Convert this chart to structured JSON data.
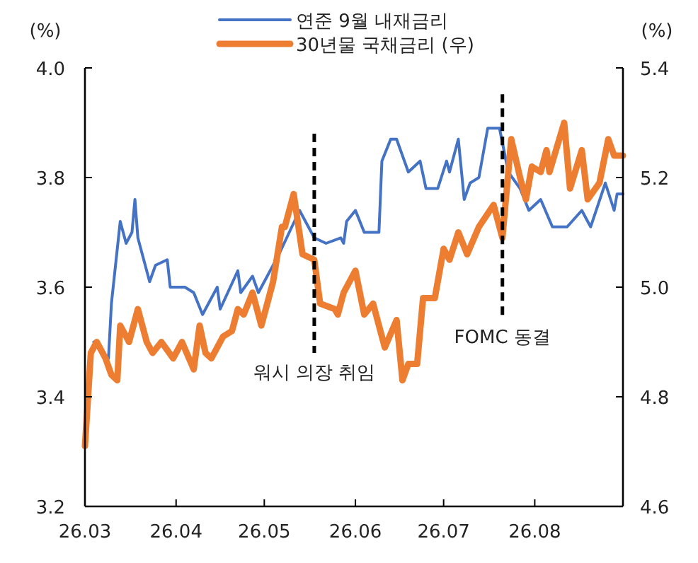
{
  "chart_data": {
    "type": "line",
    "ylabel": "(%)",
    "y2label": "(%)",
    "xlim": [
      "--03-01",
      "--08-31"
    ],
    "xticks": [
      {
        "value": "--03-01",
        "label": "26.03"
      },
      {
        "value": "--04-01",
        "label": "26.04"
      },
      {
        "value": "--05-01",
        "label": "26.05"
      },
      {
        "value": "--06-01",
        "label": "26.06"
      },
      {
        "value": "--07-01",
        "label": "26.07"
      },
      {
        "value": "--08-01",
        "label": "26.08"
      }
    ],
    "ylim": [
      3.2,
      4.0
    ],
    "yticks": [
      {
        "value": 3.2,
        "label": "3.2"
      },
      {
        "value": 3.4,
        "label": "3.4"
      },
      {
        "value": 3.6,
        "label": "3.6"
      },
      {
        "value": 3.8,
        "label": "3.8"
      },
      {
        "value": 4.0,
        "label": "4.0"
      }
    ],
    "y2lim": [
      4.6,
      5.4
    ],
    "y2ticks": [
      {
        "value": 4.6,
        "label": "4.6"
      },
      {
        "value": 4.8,
        "label": "4.8"
      },
      {
        "value": 5.0,
        "label": "5.0"
      },
      {
        "value": 5.2,
        "label": "5.2"
      },
      {
        "value": 5.4,
        "label": "5.4"
      }
    ],
    "legend": "top",
    "grid": false,
    "marker": "none",
    "series": [
      {
        "name": "연준 9월 내재금리",
        "color": "#4472c4",
        "x": [
          "--03-04",
          "--03-09",
          "--03-10",
          "--03-13",
          "--03-15",
          "--03-17",
          "--03-18",
          "--03-19",
          "--03-23",
          "--03-25",
          "--03-29",
          "--03-30",
          "--04-04",
          "--04-07",
          "--04-10",
          "--04-15",
          "--04-16",
          "--04-22",
          "--04-23",
          "--04-27",
          "--04-29",
          "--05-06",
          "--05-13",
          "--05-18",
          "--05-22",
          "--05-27",
          "--05-28",
          "--05-29",
          "--06-01",
          "--06-04",
          "--06-09",
          "--06-10",
          "--06-13",
          "--06-15",
          "--06-19",
          "--06-23",
          "--06-25",
          "--06-29",
          "--07-02",
          "--07-03",
          "--07-06",
          "--07-08",
          "--07-10",
          "--07-13",
          "--07-16",
          "--07-20",
          "--07-23",
          "--07-27",
          "--07-30",
          "--08-03",
          "--08-07",
          "--08-12",
          "--08-17",
          "--08-20",
          "--08-25",
          "--08-28",
          "--08-29",
          "--08-31"
        ],
        "values": [
          3.5,
          3.47,
          3.57,
          3.72,
          3.68,
          3.7,
          3.76,
          3.69,
          3.61,
          3.64,
          3.65,
          3.6,
          3.6,
          3.59,
          3.55,
          3.6,
          3.56,
          3.63,
          3.59,
          3.62,
          3.59,
          3.66,
          3.74,
          3.69,
          3.68,
          3.69,
          3.68,
          3.72,
          3.74,
          3.7,
          3.7,
          3.83,
          3.87,
          3.87,
          3.81,
          3.83,
          3.78,
          3.78,
          3.83,
          3.81,
          3.87,
          3.76,
          3.79,
          3.8,
          3.89,
          3.89,
          3.81,
          3.78,
          3.74,
          3.76,
          3.71,
          3.71,
          3.74,
          3.71,
          3.79,
          3.74,
          3.77,
          3.77
        ]
      },
      {
        "name": "30년물 국채금리 (우)",
        "color": "#ed7d31",
        "axis": "y2",
        "x": [
          "--03-01",
          "--03-03",
          "--03-05",
          "--03-08",
          "--03-10",
          "--03-12",
          "--03-13",
          "--03-15",
          "--03-16",
          "--03-19",
          "--03-22",
          "--03-24",
          "--03-27",
          "--03-31",
          "--04-03",
          "--04-07",
          "--04-09",
          "--04-11",
          "--04-13",
          "--04-17",
          "--04-20",
          "--04-22",
          "--04-24",
          "--04-27",
          "--04-30",
          "--05-04",
          "--05-07",
          "--05-08",
          "--05-11",
          "--05-14",
          "--05-18",
          "--05-20",
          "--05-25",
          "--05-26",
          "--05-28",
          "--06-01",
          "--06-04",
          "--06-07",
          "--06-11",
          "--06-15",
          "--06-17",
          "--06-19",
          "--06-22",
          "--06-24",
          "--06-28",
          "--07-01",
          "--07-03",
          "--07-06",
          "--07-09",
          "--07-13",
          "--07-18",
          "--07-21",
          "--07-24",
          "--07-27",
          "--07-29",
          "--07-31",
          "--08-03",
          "--08-05",
          "--08-06",
          "--08-11",
          "--08-13",
          "--08-17",
          "--08-19",
          "--08-23",
          "--08-26",
          "--08-28",
          "--08-31"
        ],
        "values": [
          4.71,
          4.88,
          4.9,
          4.87,
          4.84,
          4.83,
          4.93,
          4.91,
          4.9,
          4.96,
          4.9,
          4.88,
          4.9,
          4.87,
          4.9,
          4.85,
          4.93,
          4.88,
          4.87,
          4.91,
          4.92,
          4.96,
          4.95,
          4.99,
          4.93,
          5.01,
          5.11,
          5.11,
          5.17,
          5.06,
          5.05,
          4.97,
          4.96,
          4.95,
          4.99,
          5.03,
          4.95,
          4.97,
          4.89,
          4.94,
          4.83,
          4.86,
          4.86,
          4.98,
          4.98,
          5.07,
          5.05,
          5.1,
          5.06,
          5.11,
          5.15,
          5.09,
          5.27,
          5.2,
          5.16,
          5.22,
          5.21,
          5.25,
          5.21,
          5.3,
          5.18,
          5.25,
          5.16,
          5.19,
          5.27,
          5.24,
          5.24
        ]
      }
    ],
    "ref_lines": [
      {
        "axis": "x",
        "value": "--05-18",
        "label": "워시 의장 취임",
        "color": "#000000",
        "line_style": "dashed"
      },
      {
        "axis": "x",
        "value": "--07-21",
        "label": "FOMC 동결",
        "color": "#000000",
        "line_style": "dashed"
      }
    ]
  }
}
